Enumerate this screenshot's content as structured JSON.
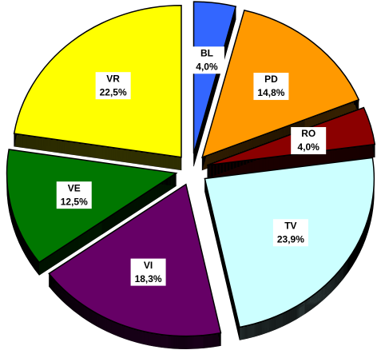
{
  "chart_data": {
    "type": "pie",
    "categories": [
      "BL",
      "PD",
      "RO",
      "TV",
      "VI",
      "VE",
      "VR"
    ],
    "values": [
      4.0,
      14.8,
      4.0,
      23.9,
      18.3,
      12.5,
      22.5
    ],
    "value_labels": [
      "4,0%",
      "14,8%",
      "4,0%",
      "23,9%",
      "18,3%",
      "12,5%",
      "22,5%"
    ],
    "colors": [
      "#3366ff",
      "#ff9900",
      "#8b0000",
      "#ccffff",
      "#660066",
      "#007700",
      "#ffff00"
    ]
  }
}
